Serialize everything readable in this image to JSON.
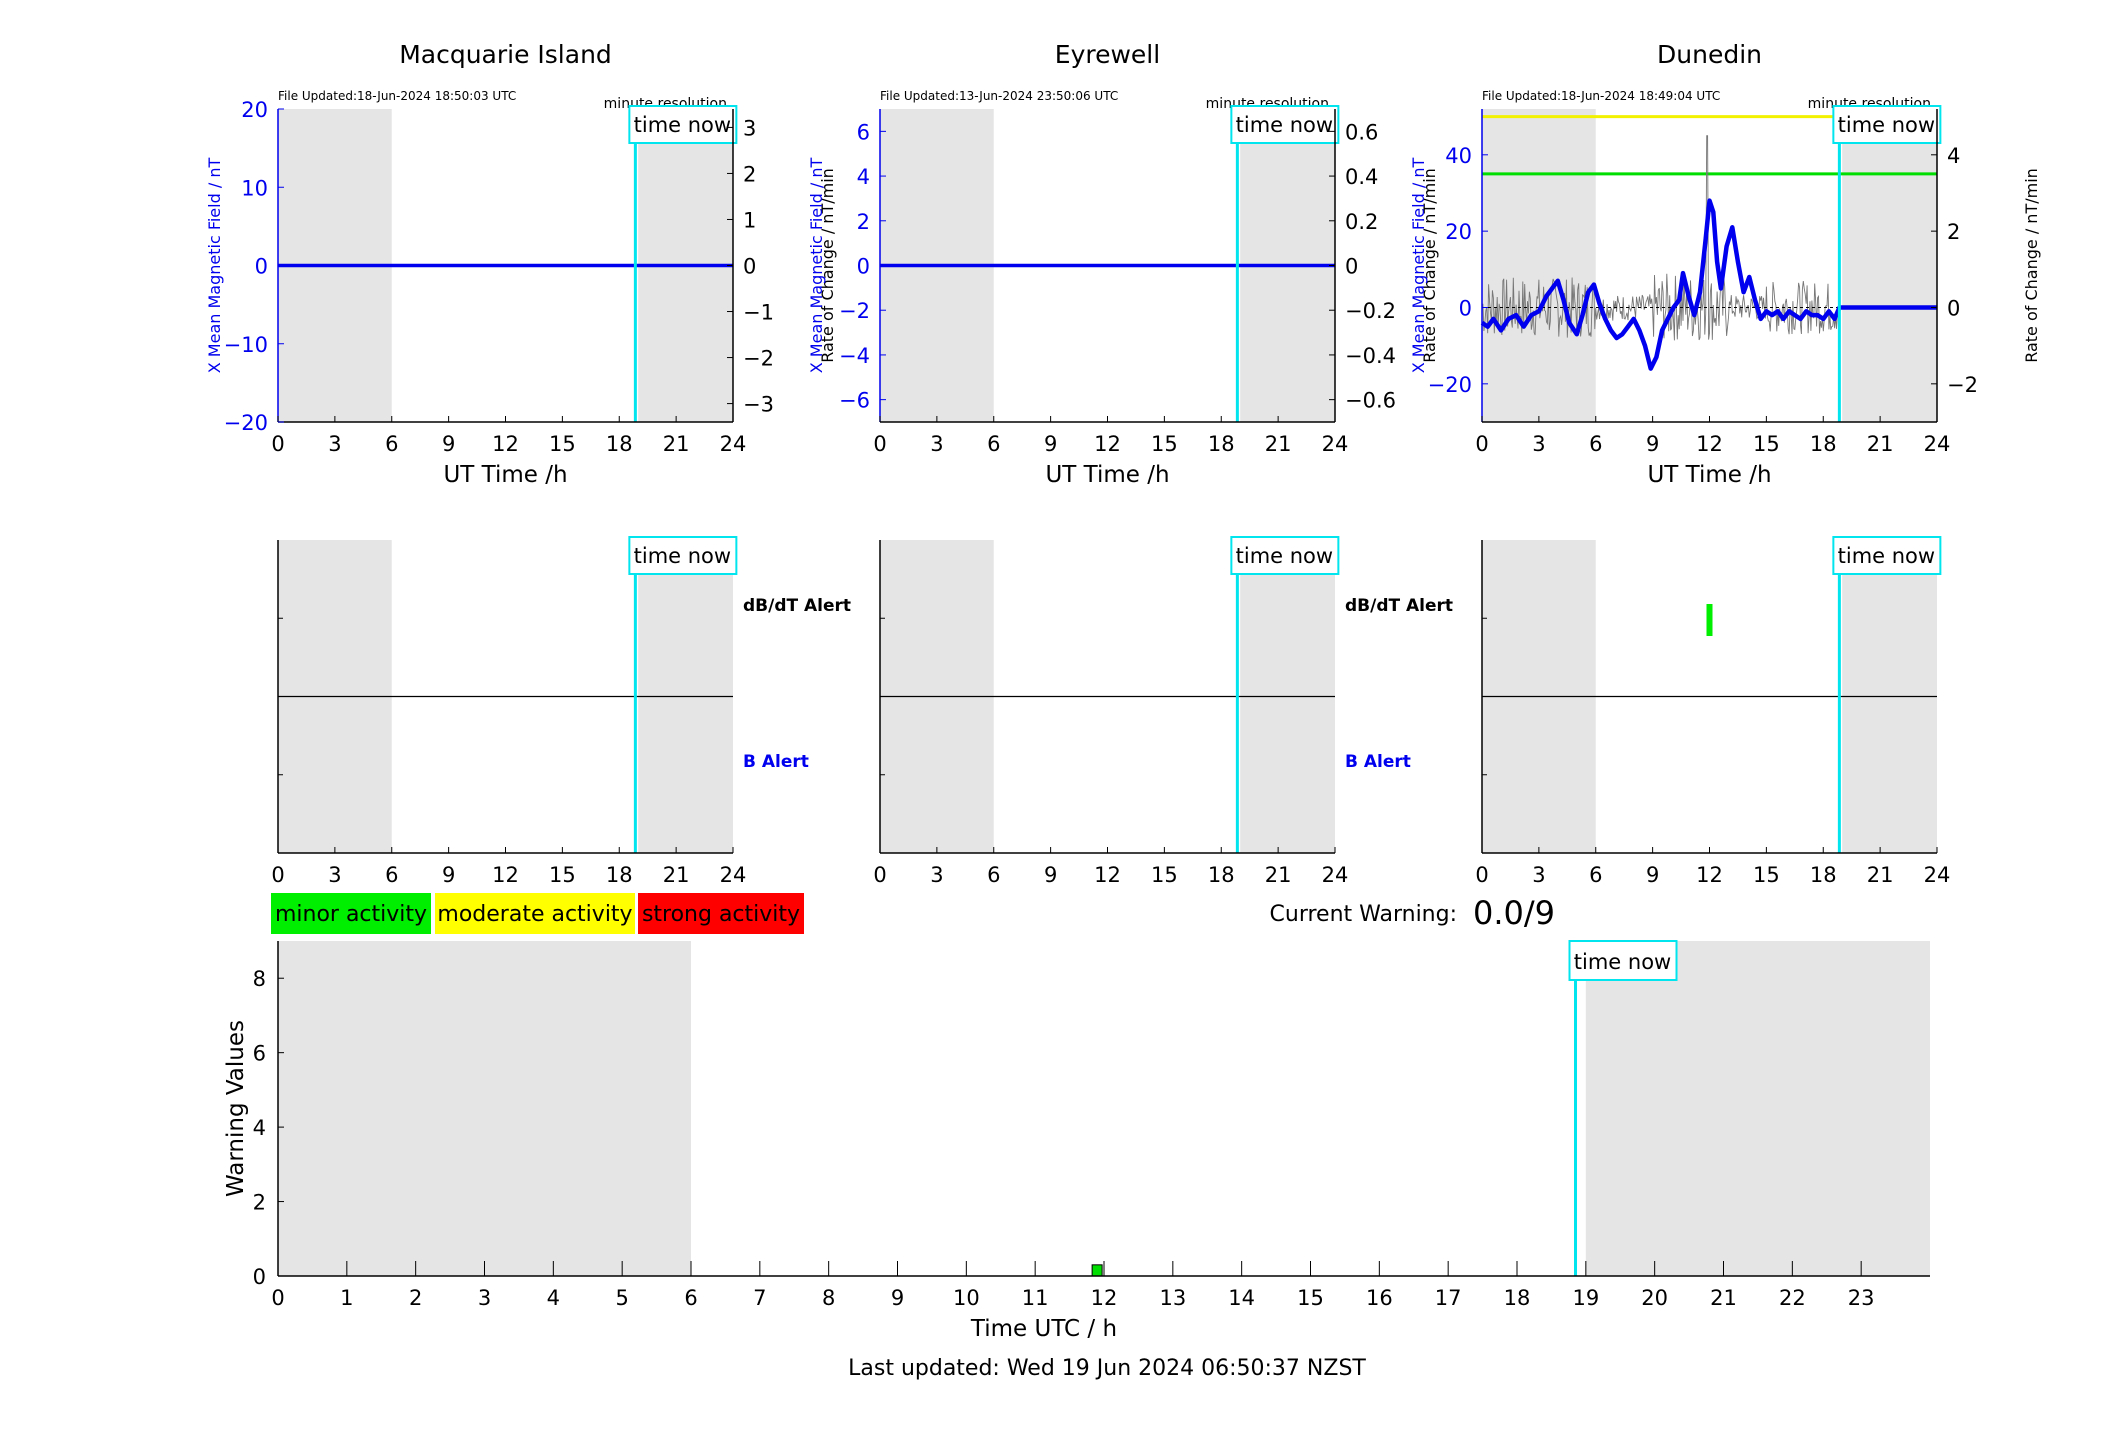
{
  "chart_data": [
    {
      "type": "line",
      "title": "Macquarie Island",
      "file_updated": "File Updated:18-Jun-2024 18:50:03 UTC",
      "resolution": "minute resolution",
      "time_now_label": "time now",
      "xlabel": "UT Time /h",
      "ylabel": "X Mean Magnetic Field / nT",
      "y2label": "Rate of Change / nT/min",
      "xlim": [
        0,
        24
      ],
      "xticks": [
        0,
        3,
        6,
        9,
        12,
        15,
        18,
        21,
        24
      ],
      "ylim": [
        -20,
        20
      ],
      "yticks": [
        -20,
        -10,
        0,
        10,
        20
      ],
      "y2lim": [
        -3.4,
        3.4
      ],
      "y2ticks": [
        -3,
        -2,
        -1,
        0,
        1,
        2,
        3
      ],
      "shaded_hours": [
        [
          0,
          6
        ],
        [
          19,
          24
        ]
      ],
      "time_now": 18.85,
      "series": [
        {
          "values_x": [
            0,
            24
          ],
          "values_y": [
            0,
            0
          ]
        }
      ]
    },
    {
      "type": "line",
      "title": "Eyrewell",
      "file_updated": "File Updated:13-Jun-2024 23:50:06 UTC",
      "resolution": "minute resolution",
      "time_now_label": "time now",
      "xlabel": "UT Time /h",
      "ylabel": "X Mean Magnetic Field / nT",
      "y2label": "Rate of Change / nT/min",
      "xlim": [
        0,
        24
      ],
      "xticks": [
        0,
        3,
        6,
        9,
        12,
        15,
        18,
        21,
        24
      ],
      "ylim": [
        -7,
        7
      ],
      "yticks": [
        -6,
        -4,
        -2,
        0,
        2,
        4,
        6
      ],
      "y2lim": [
        -0.7,
        0.7
      ],
      "y2ticks": [
        -0.6,
        -0.4,
        -0.2,
        0,
        0.2,
        0.4,
        0.6
      ],
      "shaded_hours": [
        [
          0,
          6
        ],
        [
          19,
          24
        ]
      ],
      "time_now": 18.85,
      "series": [
        {
          "values_x": [
            0,
            24
          ],
          "values_y": [
            0,
            0
          ]
        }
      ]
    },
    {
      "type": "line",
      "title": "Dunedin",
      "file_updated": "File Updated:18-Jun-2024 18:49:04 UTC",
      "resolution": "minute resolution",
      "time_now_label": "time now",
      "xlabel": "UT Time /h",
      "ylabel": "X Mean Magnetic Field / nT",
      "y2label": "Rate of Change / nT/min",
      "xlim": [
        0,
        24
      ],
      "xticks": [
        0,
        3,
        6,
        9,
        12,
        15,
        18,
        21,
        24
      ],
      "ylim": [
        -30,
        52
      ],
      "yticks": [
        -20,
        0,
        20,
        40
      ],
      "y2lim": [
        -3,
        5.2
      ],
      "y2ticks": [
        -2,
        0,
        2,
        4
      ],
      "shaded_hours": [
        [
          0,
          6
        ],
        [
          19,
          24
        ]
      ],
      "time_now": 18.85,
      "threshold_lines": [
        {
          "value": 50,
          "color": "#f2f200"
        },
        {
          "value": 35,
          "color": "#00dd00"
        }
      ],
      "series": [
        {
          "values_x": [
            0,
            0.3,
            0.6,
            1.0,
            1.4,
            1.8,
            2.2,
            2.6,
            3.0,
            3.4,
            3.7,
            4.0,
            4.3,
            4.6,
            5.0,
            5.3,
            5.6,
            5.9,
            6.2,
            6.5,
            6.8,
            7.1,
            7.4,
            7.7,
            8.0,
            8.3,
            8.6,
            8.9,
            9.2,
            9.5,
            9.8,
            10.1,
            10.4,
            10.6,
            10.9,
            11.2,
            11.5,
            11.8,
            12.0,
            12.2,
            12.4,
            12.6,
            12.9,
            13.2,
            13.5,
            13.8,
            14.1,
            14.4,
            14.7,
            15.0,
            15.3,
            15.6,
            15.9,
            16.2,
            16.5,
            16.8,
            17.1,
            17.4,
            17.7,
            18.0,
            18.3,
            18.6,
            18.85,
            19.0,
            24
          ],
          "values_y": [
            -4,
            -5,
            -3,
            -6,
            -3,
            -2,
            -5,
            -2,
            -1,
            3,
            5,
            7,
            2,
            -4,
            -7,
            -2,
            4,
            6,
            1,
            -3,
            -6,
            -8,
            -7,
            -5,
            -3,
            -6,
            -10,
            -16,
            -13,
            -6,
            -3,
            0,
            2,
            9,
            3,
            -2,
            4,
            18,
            28,
            25,
            12,
            5,
            16,
            21,
            12,
            4,
            8,
            2,
            -3,
            -1,
            -2,
            -1,
            -3,
            -1,
            -2,
            -3,
            -1,
            -2,
            -2,
            -3,
            -1,
            -3,
            0,
            0,
            0
          ]
        }
      ]
    },
    {
      "type": "bar",
      "xlim": [
        0,
        24
      ],
      "xticks": [
        0,
        3,
        6,
        9,
        12,
        15,
        18,
        21,
        24
      ],
      "shaded_hours": [
        [
          0,
          6
        ],
        [
          19,
          24
        ]
      ],
      "time_now": 18.85,
      "time_now_label": "time now",
      "alert_labels": [
        "dB/dT Alert",
        "B Alert"
      ],
      "dbdt_alerts": [
        [],
        [],
        [
          12
        ]
      ]
    },
    {
      "type": "bar",
      "xlabel": "Time UTC / h",
      "ylabel": "Warning Values",
      "xlim": [
        0,
        24
      ],
      "xticks": [
        0,
        1,
        2,
        3,
        4,
        5,
        6,
        7,
        8,
        9,
        10,
        11,
        12,
        13,
        14,
        15,
        16,
        17,
        18,
        19,
        20,
        21,
        22,
        23
      ],
      "ylim": [
        0,
        9
      ],
      "yticks": [
        0,
        2,
        4,
        6,
        8
      ],
      "shaded_hours": [
        [
          0,
          6
        ],
        [
          19,
          24
        ]
      ],
      "time_now": 18.85,
      "time_now_label": "time now",
      "bars": [
        {
          "x": 11.9,
          "value": 0.3,
          "color": "#00dd00"
        }
      ]
    }
  ],
  "legend": {
    "minor": {
      "label": "minor activity",
      "color": "#00ee00"
    },
    "moderate": {
      "label": "moderate activity",
      "color": "#ffff00"
    },
    "strong": {
      "label": "strong activity",
      "color": "#ff0000"
    }
  },
  "current_warning": {
    "label": "Current Warning:",
    "value": "0.0/9"
  },
  "last_updated": "Last updated: Wed 19 Jun 2024 06:50:37 NZST"
}
